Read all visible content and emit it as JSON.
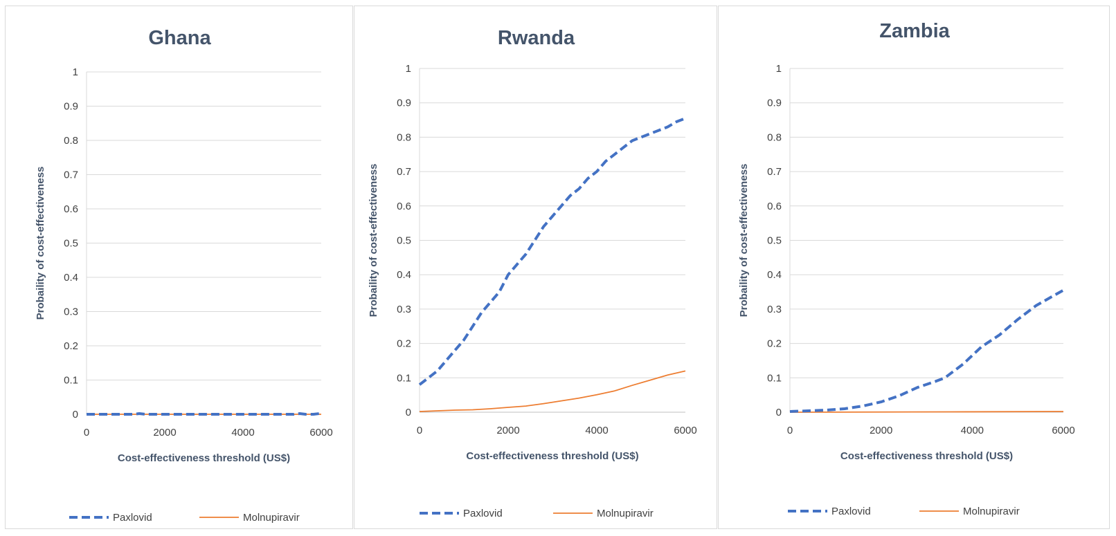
{
  "chart_data": [
    {
      "type": "line",
      "title": "Ghana",
      "xlabel": "Cost-effectiveness threshold (US$)",
      "ylabel": "Probaility of cost-effectiveness",
      "xlim": [
        0,
        6000
      ],
      "ylim": [
        0,
        1
      ],
      "x_ticks": [
        "0",
        "2000",
        "4000",
        "6000"
      ],
      "y_ticks": [
        "0",
        "0.1",
        "0.2",
        "0.3",
        "0.4",
        "0.5",
        "0.6",
        "0.7",
        "0.8",
        "0.9",
        "1"
      ],
      "grid": true,
      "legend_position": "bottom",
      "series": [
        {
          "name": "Paxlovid",
          "color": "#4472c4",
          "dash": true,
          "points": [
            [
              0,
              0
            ],
            [
              1200,
              0
            ],
            [
              1350,
              0.002
            ],
            [
              1500,
              0
            ],
            [
              3000,
              0
            ],
            [
              5300,
              0
            ],
            [
              5450,
              0.002
            ],
            [
              5600,
              0
            ],
            [
              5800,
              0
            ],
            [
              5950,
              0.002
            ],
            [
              6000,
              0.001
            ]
          ]
        },
        {
          "name": "Molnupiravir",
          "color": "#ed7d31",
          "dash": false,
          "points": [
            [
              0,
              0
            ],
            [
              6000,
              0
            ]
          ]
        }
      ]
    },
    {
      "type": "line",
      "title": "Rwanda",
      "xlabel": "Cost-effectiveness threshold (US$)",
      "ylabel": "Probaility of cost-effectiveness",
      "xlim": [
        0,
        6000
      ],
      "ylim": [
        0,
        1
      ],
      "x_ticks": [
        "0",
        "2000",
        "4000",
        "6000"
      ],
      "y_ticks": [
        "0",
        "0.1",
        "0.2",
        "0.3",
        "0.4",
        "0.5",
        "0.6",
        "0.7",
        "0.8",
        "0.9",
        "1"
      ],
      "grid": true,
      "legend_position": "bottom",
      "series": [
        {
          "name": "Paxlovid",
          "color": "#4472c4",
          "dash": true,
          "points": [
            [
              0,
              0.08
            ],
            [
              200,
              0.1
            ],
            [
              400,
              0.12
            ],
            [
              600,
              0.15
            ],
            [
              800,
              0.18
            ],
            [
              1000,
              0.21
            ],
            [
              1200,
              0.25
            ],
            [
              1400,
              0.29
            ],
            [
              1600,
              0.32
            ],
            [
              1800,
              0.35
            ],
            [
              2000,
              0.4
            ],
            [
              2200,
              0.43
            ],
            [
              2400,
              0.46
            ],
            [
              2600,
              0.5
            ],
            [
              2800,
              0.54
            ],
            [
              3000,
              0.57
            ],
            [
              3200,
              0.6
            ],
            [
              3400,
              0.63
            ],
            [
              3600,
              0.65
            ],
            [
              3800,
              0.68
            ],
            [
              4000,
              0.7
            ],
            [
              4200,
              0.73
            ],
            [
              4400,
              0.75
            ],
            [
              4600,
              0.77
            ],
            [
              4800,
              0.79
            ],
            [
              5000,
              0.8
            ],
            [
              5200,
              0.81
            ],
            [
              5400,
              0.82
            ],
            [
              5600,
              0.83
            ],
            [
              5800,
              0.845
            ],
            [
              6000,
              0.855
            ]
          ]
        },
        {
          "name": "Molnupiravir",
          "color": "#ed7d31",
          "dash": false,
          "points": [
            [
              0,
              0.002
            ],
            [
              400,
              0.004
            ],
            [
              800,
              0.006
            ],
            [
              1200,
              0.007
            ],
            [
              1600,
              0.01
            ],
            [
              2000,
              0.014
            ],
            [
              2400,
              0.018
            ],
            [
              2800,
              0.025
            ],
            [
              3200,
              0.033
            ],
            [
              3600,
              0.041
            ],
            [
              4000,
              0.051
            ],
            [
              4400,
              0.062
            ],
            [
              4800,
              0.078
            ],
            [
              5200,
              0.093
            ],
            [
              5600,
              0.108
            ],
            [
              6000,
              0.12
            ]
          ]
        }
      ]
    },
    {
      "type": "line",
      "title": "Zambia",
      "xlabel": "Cost-effectiveness threshold (US$)",
      "ylabel": "Probaility of cost-effectiveness",
      "xlim": [
        0,
        6000
      ],
      "ylim": [
        0,
        1
      ],
      "x_ticks": [
        "0",
        "2000",
        "4000",
        "6000"
      ],
      "y_ticks": [
        "0",
        "0.1",
        "0.2",
        "0.3",
        "0.4",
        "0.5",
        "0.6",
        "0.7",
        "0.8",
        "0.9",
        "1"
      ],
      "grid": true,
      "legend_position": "bottom",
      "series": [
        {
          "name": "Paxlovid",
          "color": "#4472c4",
          "dash": true,
          "points": [
            [
              0,
              0.002
            ],
            [
              400,
              0.004
            ],
            [
              800,
              0.006
            ],
            [
              1200,
              0.01
            ],
            [
              1600,
              0.018
            ],
            [
              2000,
              0.03
            ],
            [
              2400,
              0.048
            ],
            [
              2800,
              0.072
            ],
            [
              3200,
              0.09
            ],
            [
              3400,
              0.1
            ],
            [
              3800,
              0.14
            ],
            [
              4200,
              0.19
            ],
            [
              4600,
              0.225
            ],
            [
              5000,
              0.27
            ],
            [
              5400,
              0.31
            ],
            [
              5800,
              0.34
            ],
            [
              6000,
              0.355
            ]
          ]
        },
        {
          "name": "Molnupiravir",
          "color": "#ed7d31",
          "dash": false,
          "points": [
            [
              0,
              0
            ],
            [
              3500,
              0.001
            ],
            [
              6000,
              0.002
            ]
          ]
        }
      ]
    }
  ]
}
